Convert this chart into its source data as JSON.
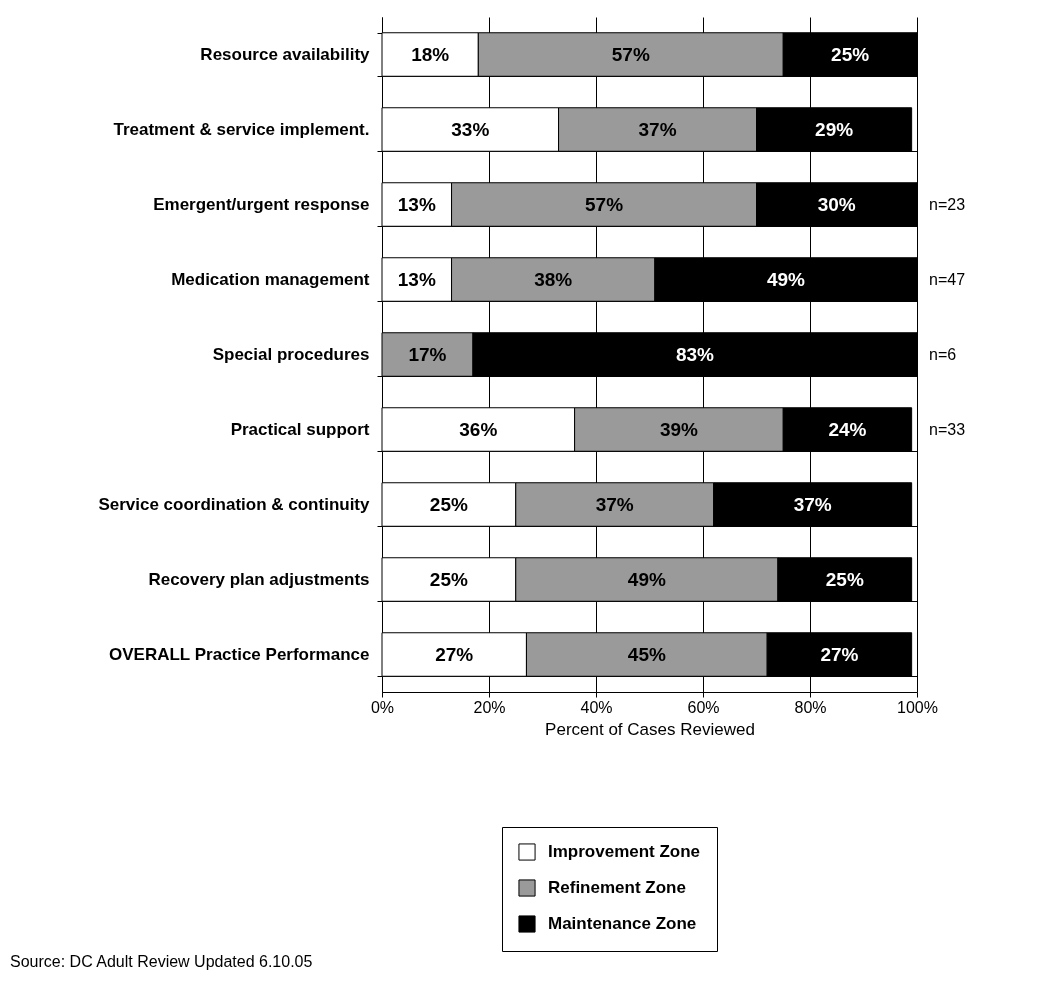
{
  "chart_data": {
    "type": "bar",
    "orientation": "horizontal",
    "stacked": true,
    "categories": [
      "Resource availability",
      "Treatment & service implement.",
      "Emergent/urgent response",
      "Medication management",
      "Special procedures",
      "Practical support",
      "Service coordination & continuity",
      "Recovery plan adjustments",
      "OVERALL Practice Performance"
    ],
    "series": [
      {
        "name": "Improvement Zone",
        "color": "#ffffff",
        "values": [
          18,
          33,
          13,
          13,
          null,
          36,
          25,
          25,
          27
        ],
        "value_labels": [
          "18%",
          "33%",
          "13%",
          "13%",
          null,
          "36%",
          "25%",
          "25%",
          "27%"
        ]
      },
      {
        "name": "Refinement Zone",
        "color": "#9a9a9a",
        "values": [
          57,
          37,
          57,
          38,
          17,
          39,
          37,
          49,
          45
        ],
        "value_labels": [
          "57%",
          "37%",
          "57%",
          "38%",
          "17%",
          "39%",
          "37%",
          "49%",
          "45%"
        ]
      },
      {
        "name": "Maintenance Zone",
        "color": "#000000",
        "values": [
          25,
          29,
          30,
          49,
          83,
          24,
          37,
          25,
          27
        ],
        "value_labels": [
          "25%",
          "29%",
          "30%",
          "49%",
          "83%",
          "24%",
          "37%",
          "25%",
          "27%"
        ]
      }
    ],
    "xlim": [
      0,
      100
    ],
    "xticks": [
      {
        "value": 0,
        "label": "0%"
      },
      {
        "value": 20,
        "label": "20%"
      },
      {
        "value": 40,
        "label": "40%"
      },
      {
        "value": 60,
        "label": "60%"
      },
      {
        "value": 80,
        "label": "80%"
      },
      {
        "value": 100,
        "label": "100%"
      }
    ],
    "xlabel": "Percent of Cases Reviewed",
    "grid": true,
    "legend": "bottom",
    "annotations": [
      "n=23",
      "n=47",
      "n=6",
      "n=33",
      "Source: DC Adult Review Updated 6.10.05"
    ]
  }
}
